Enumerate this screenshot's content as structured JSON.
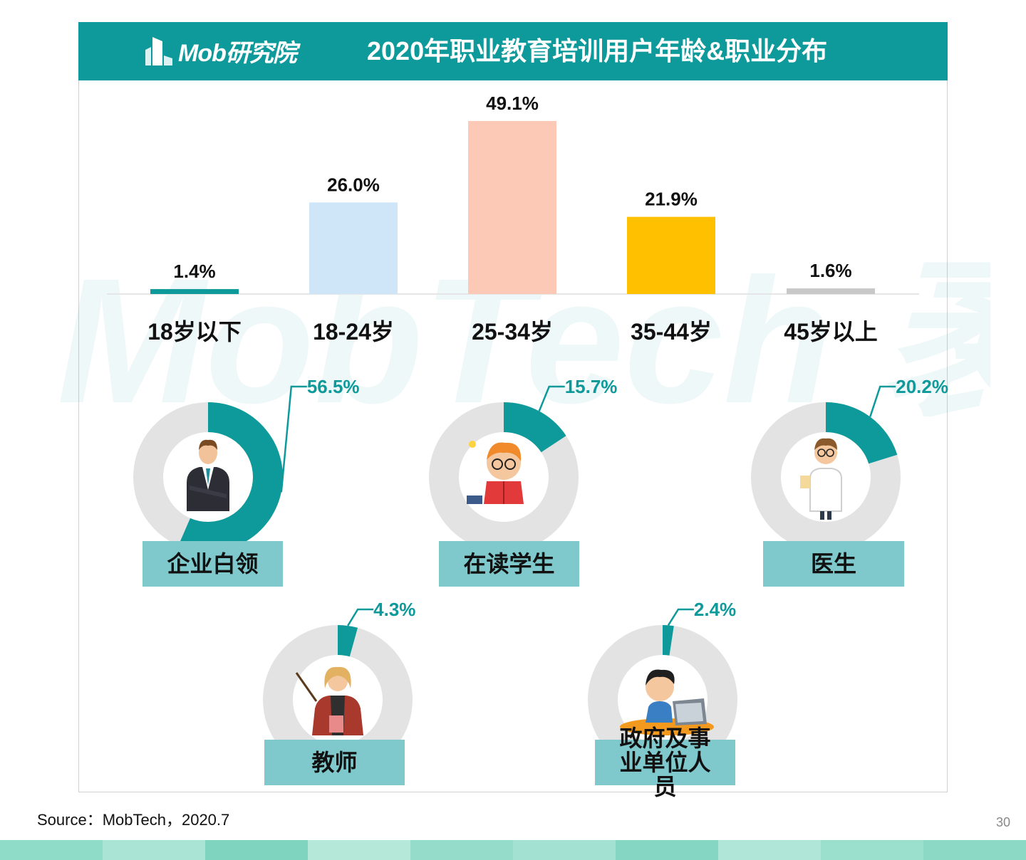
{
  "header": {
    "brand": "Mob研究院",
    "title": "2020年职业教育培训用户年龄&职业分布"
  },
  "watermark": "MobTech 袤博",
  "colors": {
    "teal": "#0e9a9a",
    "box": "#7fc9cd",
    "ring": "#e3e3e3"
  },
  "chart_data": [
    {
      "type": "bar",
      "categories": [
        "18岁以下",
        "18-24岁",
        "25-34岁",
        "35-44岁",
        "45岁以上"
      ],
      "values": [
        1.4,
        26.0,
        49.1,
        21.9,
        1.6
      ],
      "value_labels": [
        "1.4%",
        "26.0%",
        "49.1%",
        "21.9%",
        "1.6%"
      ],
      "bar_colors": [
        "#0e9a9a",
        "#cfe6f8",
        "#fbc9b6",
        "#ffc000",
        "#c8c8c8"
      ],
      "ylim": [
        0,
        49.1
      ]
    },
    {
      "type": "pie",
      "style": "donut",
      "slices": [
        {
          "label": "企业白领",
          "value": 56.5,
          "value_label": "56.5%",
          "icon": "office-worker-icon"
        },
        {
          "label": "在读学生",
          "value": 15.7,
          "value_label": "15.7%",
          "icon": "student-reading-icon"
        },
        {
          "label": "医生",
          "value": 20.2,
          "value_label": "20.2%",
          "icon": "doctor-icon"
        },
        {
          "label": "教师",
          "value": 4.3,
          "value_label": "4.3%",
          "icon": "teacher-icon"
        },
        {
          "label": "政府及事业单位人员",
          "value": 2.4,
          "value_label": "2.4%",
          "icon": "civil-servant-icon"
        }
      ]
    }
  ],
  "source": "Source：MobTech，2020.7",
  "page_number": "30"
}
